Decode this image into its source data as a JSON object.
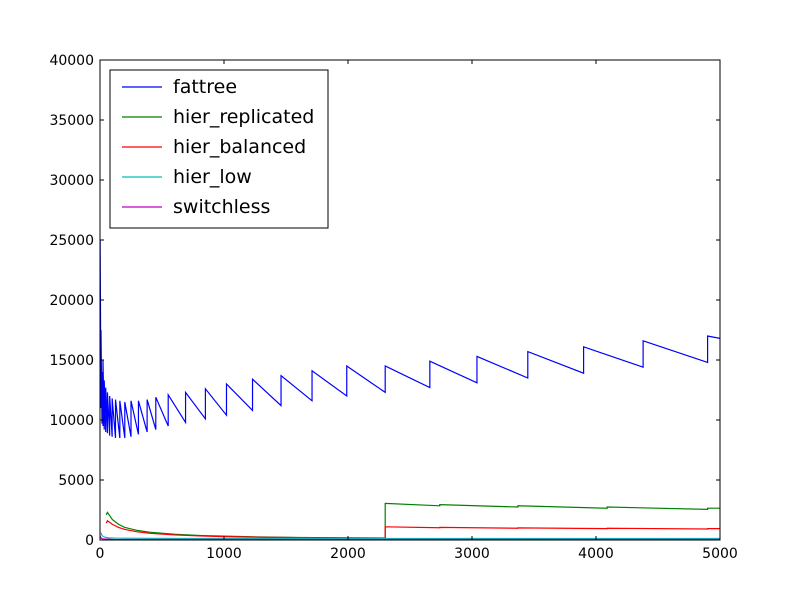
{
  "chart_data": {
    "type": "line",
    "title": "",
    "xlabel": "",
    "ylabel": "",
    "xlim": [
      0,
      5000
    ],
    "ylim": [
      0,
      40000
    ],
    "xticks": [
      0,
      1000,
      2000,
      3000,
      4000,
      5000
    ],
    "yticks": [
      0,
      5000,
      10000,
      15000,
      20000,
      25000,
      30000,
      35000,
      40000
    ],
    "grid": false,
    "legend_position": "top-left",
    "series": [
      {
        "name": "fattree",
        "color": "#0000ff",
        "x": [
          1,
          8,
          8,
          16,
          16,
          24,
          24,
          34,
          34,
          46,
          46,
          60,
          60,
          78,
          78,
          98,
          98,
          125,
          125,
          160,
          160,
          200,
          200,
          250,
          250,
          310,
          310,
          380,
          380,
          450,
          450,
          550,
          550,
          690,
          690,
          850,
          850,
          1020,
          1020,
          1230,
          1230,
          1460,
          1460,
          1710,
          1710,
          1990,
          1990,
          2300,
          2300,
          2660,
          2660,
          3040,
          3040,
          3450,
          3450,
          3900,
          3900,
          4380,
          4380,
          4900,
          4900,
          5000
        ],
        "y": [
          25000,
          11000,
          17500,
          9700,
          14000,
          9500,
          15000,
          9200,
          13300,
          9000,
          12700,
          8900,
          12300,
          8700,
          12000,
          8600,
          11800,
          8500,
          11700,
          8500,
          11600,
          8500,
          11500,
          8600,
          11600,
          8800,
          11600,
          9000,
          11700,
          9200,
          11900,
          9500,
          12100,
          9800,
          12300,
          10100,
          12600,
          10400,
          13000,
          10800,
          13400,
          11200,
          13700,
          11600,
          14100,
          12000,
          14500,
          12300,
          14500,
          12700,
          14900,
          13100,
          15300,
          13500,
          15700,
          13900,
          16100,
          14400,
          16600,
          14800,
          17000,
          16800
        ]
      },
      {
        "name": "hier_replicated",
        "color": "#008000",
        "x": [
          50,
          60,
          100,
          150,
          200,
          300,
          400,
          600,
          800,
          1000,
          1300,
          1600,
          2000,
          2300,
          2300,
          2740,
          2740,
          3370,
          3370,
          4090,
          4090,
          4900,
          4900,
          5000
        ],
        "y": [
          2100,
          2300,
          1700,
          1300,
          1050,
          800,
          650,
          480,
          380,
          320,
          250,
          210,
          180,
          170,
          3050,
          2850,
          2950,
          2750,
          2850,
          2650,
          2750,
          2550,
          2650,
          2650
        ]
      },
      {
        "name": "hier_balanced",
        "color": "#ff0000",
        "x": [
          50,
          60,
          100,
          150,
          200,
          300,
          400,
          600,
          800,
          1000,
          1300,
          1600,
          2000,
          2300,
          2300,
          2740,
          2740,
          3370,
          3370,
          4090,
          4090,
          4900,
          4900,
          5000
        ],
        "y": [
          1400,
          1600,
          1300,
          1050,
          880,
          680,
          560,
          420,
          340,
          280,
          230,
          200,
          170,
          160,
          1100,
          1020,
          1050,
          980,
          1010,
          950,
          980,
          920,
          950,
          950
        ]
      },
      {
        "name": "hier_low",
        "color": "#00bfbf",
        "x": [
          8,
          15,
          25,
          40,
          70,
          120,
          200,
          400,
          800,
          1500,
          2300,
          3000,
          4000,
          5000
        ],
        "y": [
          600,
          400,
          300,
          230,
          180,
          160,
          150,
          140,
          130,
          130,
          130,
          130,
          130,
          130
        ]
      },
      {
        "name": "switchless",
        "color": "#bf00bf",
        "x": [
          2,
          10,
          20,
          50,
          100,
          500,
          1000,
          2000,
          3000,
          4000,
          5000
        ],
        "y": [
          300,
          150,
          100,
          70,
          50,
          40,
          40,
          40,
          40,
          40,
          40
        ]
      }
    ]
  }
}
